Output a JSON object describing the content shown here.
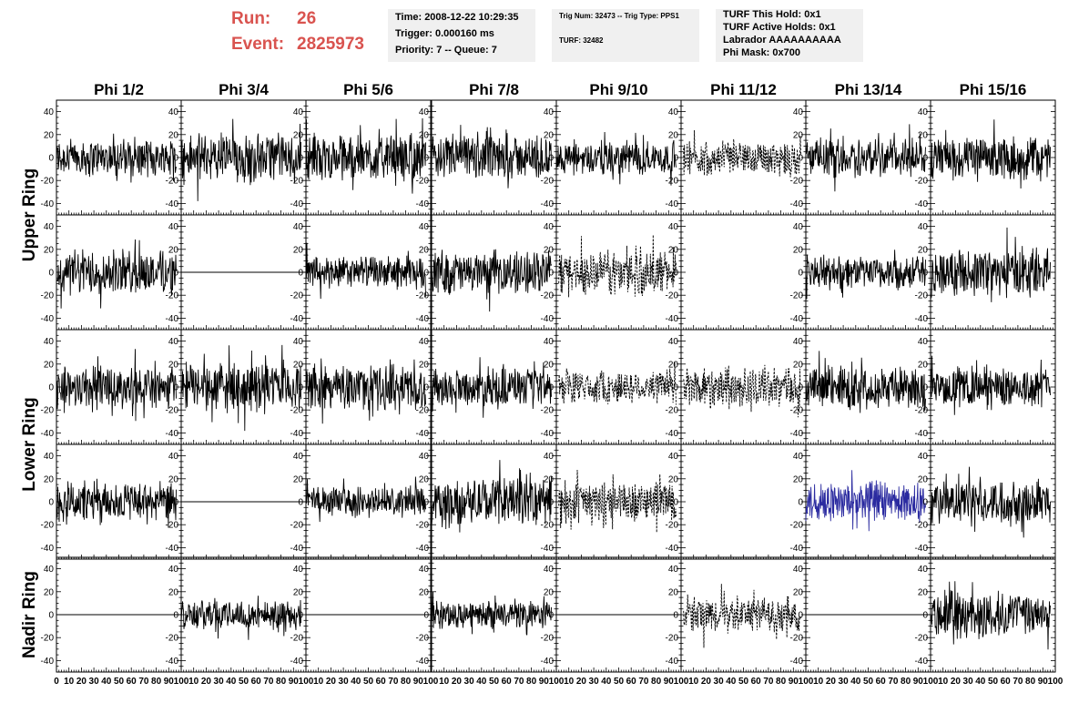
{
  "header": {
    "run_label": "Run:",
    "run_value": "26",
    "event_label": "Event:",
    "event_value": "2825973",
    "time_box": [
      "Time: 2008-12-22 10:29:35",
      "Trigger: 0.000160 ms",
      "Priority: 7 -- Queue: 7"
    ],
    "trig_box": [
      "Trig Num: 32473 -- Trig Type: PPS1",
      "TURF: 32482"
    ],
    "turf_box": [
      "TURF This Hold: 0x1",
      "TURF Active Holds: 0x1",
      "Labrador AAAAAAAAAA",
      "Phi Mask: 0x700"
    ]
  },
  "chart_data": {
    "type": "line",
    "columns": [
      "Phi 1/2",
      "Phi 3/4",
      "Phi 5/6",
      "Phi 7/8",
      "Phi 9/10",
      "Phi 11/12",
      "Phi 13/14",
      "Phi 15/16"
    ],
    "ring_labels": [
      {
        "text": "Upper Ring",
        "rows": [
          0,
          1
        ]
      },
      {
        "text": "Lower Ring",
        "rows": [
          2,
          3
        ]
      },
      {
        "text": "Nadir Ring",
        "rows": [
          4,
          4
        ]
      }
    ],
    "xlim": [
      0,
      100
    ],
    "ylim": [
      -50,
      50
    ],
    "y_ticks": [
      -40,
      -20,
      0,
      20,
      40
    ],
    "x_ticks": [
      0,
      10,
      20,
      30,
      40,
      50,
      60,
      70,
      80,
      90,
      100
    ],
    "grid": false,
    "colors": {
      "normal": "#000000",
      "highlight": "#2b2ba0"
    },
    "panels": [
      [
        {
          "style": "solid",
          "amp": 14,
          "start": 0,
          "end": 96
        },
        {
          "style": "solid",
          "amp": 18,
          "start": 0,
          "end": 96
        },
        {
          "style": "solid",
          "amp": 17,
          "start": 0,
          "end": 96
        },
        {
          "style": "solid",
          "amp": 16,
          "start": 0,
          "end": 96
        },
        {
          "style": "solid",
          "amp": 13,
          "start": 0,
          "end": 96
        },
        {
          "style": "dashed",
          "amp": 13,
          "start": 2,
          "end": 96
        },
        {
          "style": "solid",
          "amp": 15,
          "start": 0,
          "end": 96
        },
        {
          "style": "solid",
          "amp": 16,
          "start": 0,
          "end": 96
        }
      ],
      [
        {
          "style": "solid",
          "amp": 17,
          "start": 0,
          "end": 96
        },
        {
          "style": "flat",
          "amp": 0,
          "start": 0,
          "end": 100
        },
        {
          "style": "solid",
          "amp": 12,
          "start": 0,
          "end": 96
        },
        {
          "style": "solid",
          "amp": 16,
          "start": 0,
          "end": 96
        },
        {
          "style": "dashed",
          "amp": 17,
          "start": 2,
          "end": 96
        },
        {
          "style": "none",
          "amp": 0,
          "start": 0,
          "end": 0
        },
        {
          "style": "solid",
          "amp": 13,
          "start": 0,
          "end": 96
        },
        {
          "style": "solid",
          "amp": 18,
          "start": 0,
          "end": 96
        }
      ],
      [
        {
          "style": "solid",
          "amp": 16,
          "start": 0,
          "end": 96
        },
        {
          "style": "solid",
          "amp": 18,
          "start": 0,
          "end": 96
        },
        {
          "style": "solid",
          "amp": 17,
          "start": 0,
          "end": 96
        },
        {
          "style": "solid",
          "amp": 14,
          "start": 0,
          "end": 96
        },
        {
          "style": "dashed",
          "amp": 13,
          "start": 2,
          "end": 96
        },
        {
          "style": "dashed",
          "amp": 15,
          "start": 2,
          "end": 96
        },
        {
          "style": "solid",
          "amp": 16,
          "start": 0,
          "end": 96
        },
        {
          "style": "solid",
          "amp": 15,
          "start": 0,
          "end": 96
        }
      ],
      [
        {
          "style": "solid",
          "amp": 15,
          "start": 0,
          "end": 96
        },
        {
          "style": "flat",
          "amp": 0,
          "start": 0,
          "end": 100
        },
        {
          "style": "solid",
          "amp": 11,
          "start": 0,
          "end": 96
        },
        {
          "style": "solid",
          "amp": 17,
          "start": 0,
          "end": 96
        },
        {
          "style": "dashed",
          "amp": 16,
          "start": 2,
          "end": 96
        },
        {
          "style": "none",
          "amp": 0,
          "start": 0,
          "end": 0
        },
        {
          "style": "highlight",
          "amp": 15,
          "start": 0,
          "end": 96
        },
        {
          "style": "solid",
          "amp": 16,
          "start": 0,
          "end": 96
        }
      ],
      [
        {
          "style": "flat",
          "amp": 0,
          "start": 0,
          "end": 100
        },
        {
          "style": "solid",
          "amp": 11,
          "start": 0,
          "end": 96
        },
        {
          "style": "flat",
          "amp": 0,
          "start": 0,
          "end": 100
        },
        {
          "style": "solid",
          "amp": 10,
          "start": 0,
          "end": 96
        },
        {
          "style": "flat",
          "amp": 0,
          "start": 0,
          "end": 100
        },
        {
          "style": "dashed",
          "amp": 13,
          "start": 2,
          "end": 96
        },
        {
          "style": "flat",
          "amp": 0,
          "start": 0,
          "end": 100
        },
        {
          "style": "solid",
          "amp": 17,
          "start": 0,
          "end": 96
        }
      ]
    ]
  }
}
